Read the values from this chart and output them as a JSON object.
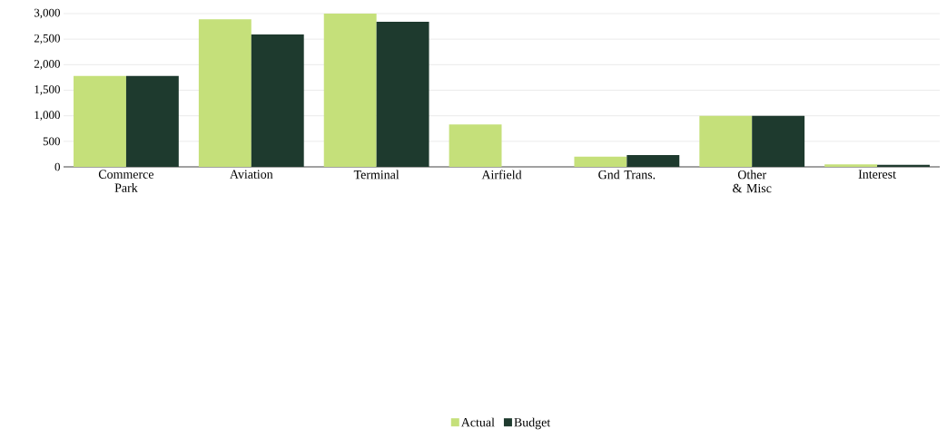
{
  "chart_data": {
    "type": "bar",
    "categories": [
      "Commerce Park",
      "Aviation",
      "Terminal",
      "Airfield",
      "Gnd Trans.",
      "Other & Misc",
      "Interest"
    ],
    "series": [
      {
        "name": "Actual",
        "color": "#c5e07a",
        "values": [
          1780,
          2890,
          3000,
          830,
          200,
          1000,
          50
        ]
      },
      {
        "name": "Budget",
        "color": "#1e3a2e",
        "values": [
          1780,
          2590,
          2840,
          null,
          230,
          1000,
          40
        ]
      }
    ],
    "ylim": [
      0,
      3000
    ],
    "yticks": [
      0,
      500,
      {
        "value": 1000,
        "label": "1,000"
      },
      {
        "value": 1500,
        "label": "1,500"
      },
      {
        "value": 2000,
        "label": "2,000"
      },
      {
        "value": 2500,
        "label": "2,500"
      },
      {
        "value": 3000,
        "label": "3,000"
      }
    ],
    "grid": "y",
    "legend": "bottom"
  }
}
